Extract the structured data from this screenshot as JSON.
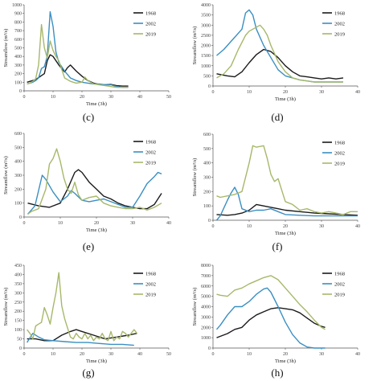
{
  "figure": {
    "series_colors": {
      "1968": "#1a1a1a",
      "2002": "#3a8fc2",
      "2019": "#a6b86a"
    }
  },
  "chart_data": [
    {
      "type": "line",
      "panel_label": "(c)",
      "xlabel": "Time (3h)",
      "ylabel": "Streamflow (m³/s)",
      "xlim": [
        0,
        50
      ],
      "xticks": [
        0,
        10,
        20,
        30,
        40,
        50
      ],
      "ylim": [
        0,
        1000
      ],
      "yticks": [
        0,
        100,
        200,
        300,
        400,
        500,
        600,
        700,
        800,
        900,
        1000
      ],
      "legend_position": "top-right",
      "grid": false,
      "series": [
        {
          "name": "1968",
          "x": [
            1,
            4,
            7,
            8,
            9,
            10,
            12,
            13,
            14,
            15,
            16,
            18,
            20,
            22,
            24,
            26,
            28,
            30,
            32,
            34,
            36
          ],
          "y": [
            100,
            130,
            200,
            350,
            420,
            400,
            300,
            260,
            220,
            270,
            300,
            230,
            170,
            120,
            90,
            75,
            70,
            75,
            60,
            55,
            55
          ]
        },
        {
          "name": "2002",
          "x": [
            1,
            2,
            3,
            4,
            5,
            6,
            7,
            8,
            9,
            10,
            11,
            12,
            14,
            16,
            18,
            20,
            22,
            24,
            26,
            28,
            30,
            32,
            34,
            36
          ],
          "y": [
            80,
            90,
            100,
            120,
            150,
            260,
            280,
            400,
            920,
            750,
            450,
            330,
            230,
            150,
            120,
            100,
            90,
            80,
            80,
            70,
            70,
            50,
            40,
            40
          ]
        },
        {
          "name": "2019",
          "x": [
            1,
            2,
            3,
            4,
            5,
            6,
            7,
            8,
            9,
            10,
            11,
            12,
            13,
            14,
            16,
            18,
            20,
            21,
            22,
            24,
            26,
            28,
            30,
            32,
            34,
            36
          ],
          "y": [
            80,
            90,
            110,
            140,
            300,
            770,
            500,
            380,
            580,
            470,
            400,
            350,
            250,
            150,
            110,
            90,
            100,
            160,
            120,
            80,
            70,
            60,
            50,
            40,
            40,
            40
          ]
        }
      ]
    },
    {
      "type": "line",
      "panel_label": "(d)",
      "xlabel": "Time (3h)",
      "ylabel": "Streamflow (m³/s)",
      "xlim": [
        0,
        40
      ],
      "xticks": [
        0,
        10,
        20,
        30,
        40
      ],
      "ylim": [
        0,
        4000
      ],
      "yticks": [
        0,
        500,
        1000,
        1500,
        2000,
        2500,
        3000,
        3500,
        4000
      ],
      "legend_position": "top-right",
      "grid": false,
      "series": [
        {
          "name": "1968",
          "x": [
            1,
            4,
            6,
            8,
            10,
            12,
            14,
            16,
            18,
            20,
            22,
            24,
            26,
            28,
            30,
            32,
            34,
            36
          ],
          "y": [
            600,
            500,
            450,
            700,
            1150,
            1550,
            1800,
            1700,
            1400,
            1000,
            700,
            500,
            450,
            400,
            350,
            400,
            350,
            400
          ]
        },
        {
          "name": "2002",
          "x": [
            1,
            3,
            5,
            6,
            8,
            9,
            10,
            11,
            12,
            14,
            16,
            18,
            20,
            24,
            28,
            32,
            36
          ],
          "y": [
            1500,
            1800,
            2200,
            2400,
            2800,
            3600,
            3750,
            3500,
            2800,
            2000,
            1400,
            800,
            500,
            300,
            200,
            200,
            200
          ]
        },
        {
          "name": "2019",
          "x": [
            1,
            3,
            5,
            7,
            9,
            10,
            12,
            13,
            14,
            15,
            16,
            18,
            20,
            22,
            24,
            26,
            28,
            32,
            36
          ],
          "y": [
            400,
            600,
            1000,
            1800,
            2500,
            2700,
            2900,
            3000,
            2800,
            2500,
            2000,
            1200,
            700,
            400,
            300,
            250,
            200,
            200,
            200
          ]
        }
      ]
    },
    {
      "type": "line",
      "panel_label": "(e)",
      "xlabel": "Time (3h)",
      "ylabel": "Streamflow (m³/s)",
      "xlim": [
        0,
        40
      ],
      "xticks": [
        0,
        10,
        20,
        30,
        40
      ],
      "ylim": [
        0,
        600
      ],
      "yticks": [
        0,
        100,
        200,
        300,
        400,
        500,
        600
      ],
      "legend_position": "top-right",
      "grid": false,
      "series": [
        {
          "name": "1968",
          "x": [
            1,
            4,
            7,
            10,
            12,
            14,
            15,
            16,
            18,
            20,
            22,
            24,
            26,
            28,
            30,
            32,
            34,
            36,
            38
          ],
          "y": [
            100,
            80,
            70,
            100,
            200,
            320,
            340,
            320,
            250,
            200,
            150,
            130,
            100,
            80,
            70,
            60,
            60,
            90,
            170
          ]
        },
        {
          "name": "2002",
          "x": [
            1,
            3,
            5,
            6,
            8,
            10,
            12,
            13,
            14,
            16,
            18,
            20,
            22,
            24,
            26,
            28,
            30,
            32,
            34,
            36,
            37,
            38
          ],
          "y": [
            20,
            80,
            300,
            270,
            180,
            110,
            150,
            190,
            170,
            120,
            110,
            120,
            130,
            110,
            90,
            70,
            70,
            150,
            240,
            290,
            320,
            310
          ]
        },
        {
          "name": "2019",
          "x": [
            1,
            2,
            4,
            6,
            7,
            8,
            9,
            10,
            11,
            12,
            13,
            14,
            15,
            16,
            18,
            20,
            22,
            24,
            26,
            28,
            30,
            32,
            34,
            36,
            38
          ],
          "y": [
            20,
            40,
            60,
            200,
            380,
            420,
            490,
            400,
            280,
            200,
            170,
            250,
            160,
            120,
            140,
            150,
            100,
            80,
            70,
            60,
            60,
            70,
            50,
            70,
            100
          ]
        }
      ]
    },
    {
      "type": "line",
      "panel_label": "(f)",
      "xlabel": "Time (3h)",
      "ylabel": "Streamflow (m³/s)",
      "xlim": [
        0,
        40
      ],
      "xticks": [
        0,
        10,
        20,
        30,
        40
      ],
      "ylim": [
        0,
        600
      ],
      "yticks": [
        0,
        100,
        200,
        300,
        400,
        500,
        600
      ],
      "legend_position": "top-right",
      "grid": false,
      "series": [
        {
          "name": "1968",
          "x": [
            1,
            4,
            6,
            8,
            10,
            12,
            14,
            16,
            18,
            20,
            24,
            28,
            32,
            36,
            40
          ],
          "y": [
            40,
            35,
            40,
            50,
            70,
            110,
            100,
            90,
            80,
            70,
            60,
            50,
            45,
            40,
            35
          ]
        },
        {
          "name": "2002",
          "x": [
            1,
            2,
            4,
            5,
            6,
            7,
            8,
            10,
            12,
            14,
            16,
            18,
            20,
            24,
            28,
            32,
            36,
            40
          ],
          "y": [
            0,
            30,
            140,
            190,
            230,
            180,
            80,
            60,
            70,
            70,
            80,
            60,
            40,
            35,
            30,
            30,
            30,
            30
          ]
        },
        {
          "name": "2019",
          "x": [
            1,
            2,
            4,
            6,
            8,
            10,
            11,
            12,
            14,
            15,
            16,
            17,
            18,
            20,
            22,
            24,
            26,
            28,
            30,
            32,
            34,
            36,
            38,
            40
          ],
          "y": [
            170,
            160,
            170,
            180,
            200,
            400,
            520,
            510,
            520,
            430,
            320,
            270,
            290,
            130,
            110,
            70,
            80,
            60,
            50,
            60,
            50,
            40,
            60,
            60
          ]
        }
      ]
    },
    {
      "type": "line",
      "panel_label": "(g)",
      "xlabel": "Time (3h)",
      "ylabel": "Streamflow (m³/s)",
      "xlim": [
        0,
        50
      ],
      "xticks": [
        0,
        10,
        20,
        30,
        40,
        50
      ],
      "ylim": [
        0,
        450
      ],
      "yticks": [
        0,
        50,
        100,
        150,
        200,
        250,
        300,
        350,
        400,
        450
      ],
      "legend_position": "top-right",
      "grid": false,
      "series": [
        {
          "name": "1968",
          "x": [
            1,
            4,
            7,
            10,
            13,
            16,
            18,
            20,
            24,
            28,
            32,
            36,
            39
          ],
          "y": [
            50,
            50,
            40,
            40,
            70,
            90,
            100,
            90,
            70,
            50,
            60,
            70,
            80
          ]
        },
        {
          "name": "2002",
          "x": [
            1,
            3,
            5,
            7,
            10,
            14,
            18,
            22,
            26,
            30,
            34,
            38
          ],
          "y": [
            30,
            80,
            60,
            45,
            40,
            35,
            30,
            30,
            25,
            20,
            20,
            15
          ]
        },
        {
          "name": "2019",
          "x": [
            1,
            2,
            3,
            4,
            5,
            6,
            7,
            8,
            9,
            10,
            11,
            12,
            13,
            14,
            15,
            16,
            17,
            18,
            19,
            20,
            21,
            22,
            23,
            24,
            25,
            26,
            27,
            28,
            29,
            30,
            31,
            32,
            33,
            34,
            35,
            36,
            37,
            38,
            39
          ],
          "y": [
            100,
            80,
            50,
            120,
            130,
            140,
            220,
            180,
            130,
            220,
            300,
            410,
            230,
            160,
            110,
            60,
            50,
            80,
            60,
            50,
            80,
            50,
            70,
            40,
            60,
            50,
            80,
            50,
            40,
            90,
            40,
            60,
            50,
            90,
            80,
            60,
            80,
            100,
            80
          ]
        }
      ]
    },
    {
      "type": "line",
      "panel_label": "(h)",
      "xlabel": "Time (3h)",
      "ylabel": "Streamflow (m³/s)",
      "xlim": [
        0,
        40
      ],
      "xticks": [
        0,
        10,
        20,
        30,
        40
      ],
      "ylim": [
        0,
        8000
      ],
      "yticks": [
        0,
        1000,
        2000,
        3000,
        4000,
        5000,
        6000,
        7000,
        8000
      ],
      "legend_position": "top-right",
      "grid": false,
      "series": [
        {
          "name": "1968",
          "x": [
            1,
            4,
            6,
            8,
            10,
            12,
            14,
            16,
            18,
            20,
            22,
            24,
            26,
            28,
            30,
            31
          ],
          "y": [
            1000,
            1400,
            1800,
            2000,
            2700,
            3200,
            3500,
            3800,
            3900,
            3800,
            3700,
            3400,
            2900,
            2400,
            2100,
            2000
          ]
        },
        {
          "name": "2002",
          "x": [
            1,
            2,
            4,
            6,
            8,
            10,
            12,
            14,
            15,
            16,
            18,
            20,
            22,
            24,
            26,
            28,
            30,
            31
          ],
          "y": [
            1800,
            2200,
            3200,
            4000,
            4000,
            4500,
            5200,
            5700,
            5800,
            5400,
            4000,
            2500,
            1300,
            500,
            100,
            0,
            0,
            0
          ]
        },
        {
          "name": "2019",
          "x": [
            1,
            2,
            4,
            6,
            8,
            10,
            12,
            14,
            16,
            18,
            20,
            22,
            24,
            26,
            28,
            30,
            31
          ],
          "y": [
            5200,
            5100,
            5000,
            5600,
            5800,
            6200,
            6500,
            6800,
            7000,
            6600,
            5800,
            5000,
            4200,
            3500,
            2700,
            2000,
            1800
          ]
        }
      ]
    }
  ]
}
